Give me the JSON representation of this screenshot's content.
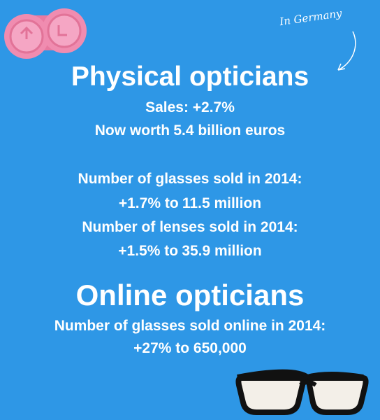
{
  "annotation": "In Germany",
  "physical": {
    "title": "Physical opticians",
    "lines": [
      {
        "text": "Sales: +2.7%"
      },
      {
        "text": "Now worth",
        "emphasis": "5.4 billion euros"
      },
      {
        "text": "Number of glasses sold in 2014:"
      },
      {
        "text": "+1.7% to",
        "emphasis": "11.5 million"
      },
      {
        "text": "Number of lenses sold in 2014:"
      },
      {
        "text": "+1.5% to",
        "emphasis": "35.9 million"
      }
    ]
  },
  "online": {
    "title": "Online opticians",
    "lines": [
      {
        "text": "Number of glasses sold online in 2014:"
      },
      {
        "text": "+27% to 650,000"
      }
    ]
  }
}
